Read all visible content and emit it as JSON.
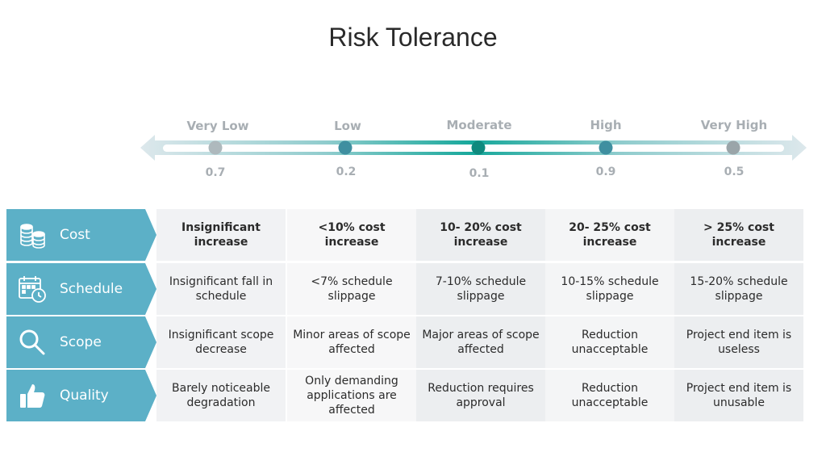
{
  "title": "Risk Tolerance",
  "scale": {
    "levels": [
      {
        "label": "Very Low",
        "value": "0.7"
      },
      {
        "label": "Low",
        "value": "0.2"
      },
      {
        "label": "Moderate",
        "value": "0.1"
      },
      {
        "label": "High",
        "value": "0.9"
      },
      {
        "label": "Very High",
        "value": "0.5"
      }
    ],
    "colors": {
      "accent": "#17a89b",
      "accent_light": "#7ec9c8",
      "arrow_end": "#c4d7de",
      "category": "#5cb0c7"
    }
  },
  "categories": [
    {
      "label": "Cost",
      "icon": "coins-icon"
    },
    {
      "label": "Schedule",
      "icon": "calendar-clock-icon"
    },
    {
      "label": "Scope",
      "icon": "magnifier-icon"
    },
    {
      "label": "Quality",
      "icon": "thumbs-up-icon"
    }
  ],
  "rows": [
    [
      "Insignificant increase",
      "<10% cost increase",
      "10- 20% cost increase",
      "20- 25% cost increase",
      "> 25% cost increase"
    ],
    [
      "Insignificant fall in schedule",
      "<7% schedule slippage",
      "7-10% schedule slippage",
      "10-15% schedule slippage",
      "15-20% schedule slippage"
    ],
    [
      "Insignificant scope decrease",
      "Minor areas of scope affected",
      "Major areas of scope affected",
      "Reduction unacceptable",
      "Project end item is useless"
    ],
    [
      "Barely noticeable degradation",
      "Only demanding applications are affected",
      "Reduction requires approval",
      "Reduction unacceptable",
      "Project end item is unusable"
    ]
  ]
}
